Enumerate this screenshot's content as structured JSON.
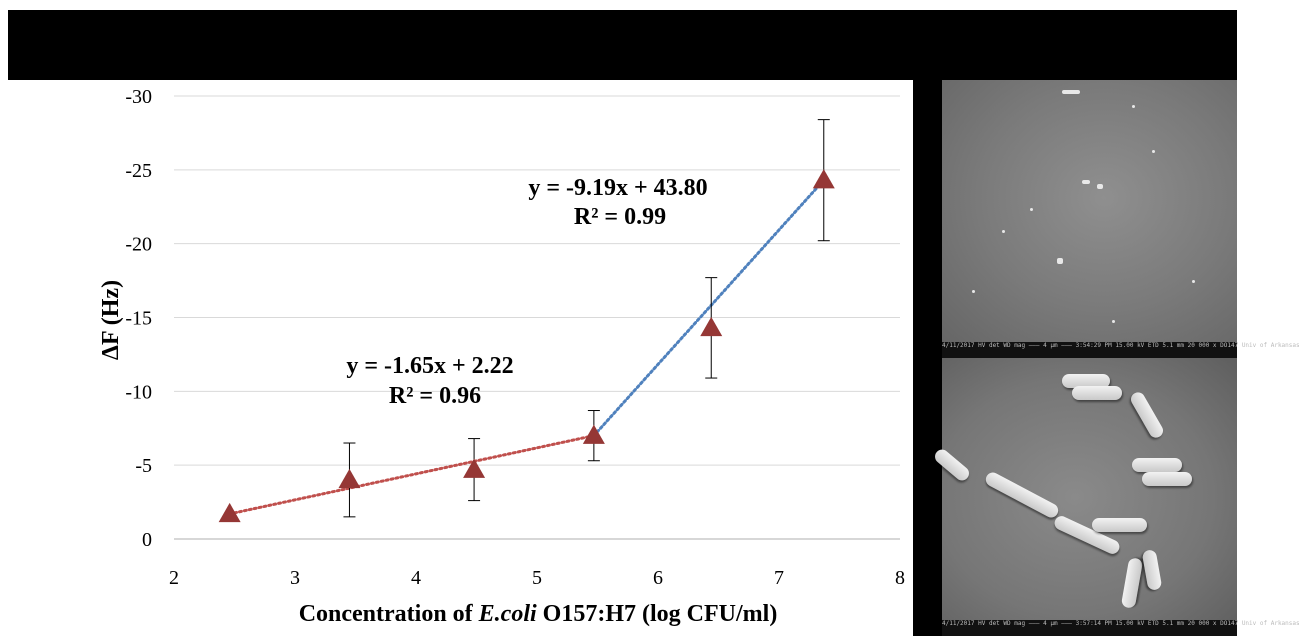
{
  "chart_data": {
    "type": "scatter",
    "xlabel": {
      "before": "Concentration of ",
      "italic": "E.coli",
      "after": " O157:H7 (log CFU/ml)"
    },
    "ylabel": "ΔF (Hz)",
    "xlim": [
      2,
      8
    ],
    "ylim": [
      0,
      -30
    ],
    "x_ticks": [
      "2",
      "3",
      "4",
      "5",
      "6",
      "7",
      "8"
    ],
    "y_ticks": [
      "0",
      "-5",
      "-10",
      "-15",
      "-20",
      "-25",
      "-30"
    ],
    "grid": "horizontal",
    "marker": {
      "shape": "triangle",
      "color": "#953735"
    },
    "points": [
      {
        "x": 2.46,
        "y": -1.7,
        "err": 0
      },
      {
        "x": 3.45,
        "y": -4.0,
        "err": 2.5
      },
      {
        "x": 4.48,
        "y": -4.7,
        "err": 2.1
      },
      {
        "x": 5.47,
        "y": -7.0,
        "err": 1.7
      },
      {
        "x": 6.44,
        "y": -14.3,
        "err": 3.4
      },
      {
        "x": 7.37,
        "y": -24.3,
        "err": 4.1
      }
    ],
    "trendlines": [
      {
        "color": "#c0504d",
        "x_range": [
          2.46,
          5.47
        ],
        "equation": "y = -1.65x + 2.22",
        "r2": "R² = 0.96"
      },
      {
        "color": "#4f81bd",
        "x_range": [
          5.47,
          7.37
        ],
        "equation": "y = -9.19x + 43.80",
        "r2": "R² = 0.99"
      }
    ]
  },
  "colors": {
    "marker": "#953735",
    "red_trend": "#c0504d",
    "blue_trend": "#4f81bd",
    "grid": "#d9d9d9"
  },
  "sem_images": {
    "top_info": "4/11/2017  HV  det  WD  mag  ——— 4 µm ———  3:54:29 PM  15.00 kV  ETD  5.1 mm  20 000 x  DO147 Univ of Arkansas",
    "bottom_info": "4/11/2017  HV  det  WD  mag  ——— 4 µm ———  3:57:14 PM  15.00 kV  ETD  5.1 mm  20 000 x  DO147 Univ of Arkansas"
  }
}
